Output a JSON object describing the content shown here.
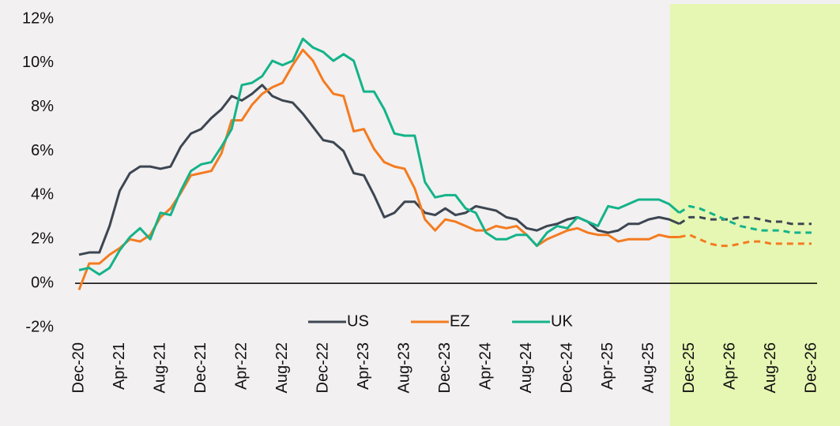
{
  "chart_data": {
    "type": "line",
    "categories": [
      "Dec-20",
      null,
      null,
      null,
      "Apr-21",
      null,
      null,
      null,
      "Aug-21",
      null,
      null,
      null,
      "Dec-21",
      null,
      null,
      null,
      "Apr-22",
      null,
      null,
      null,
      "Aug-22",
      null,
      null,
      null,
      "Dec-22",
      null,
      null,
      null,
      "Apr-23",
      null,
      null,
      null,
      "Aug-23",
      null,
      null,
      null,
      "Dec-23",
      null,
      null,
      null,
      "Apr-24",
      null,
      null,
      null,
      "Aug-24",
      null,
      null,
      null,
      "Dec-24",
      null,
      null,
      null,
      "Apr-25",
      null,
      null,
      null,
      "Aug-25",
      null,
      null,
      null,
      "Dec-25",
      null,
      null,
      null,
      "Apr-26",
      null,
      null,
      null,
      "Aug-26",
      null,
      null,
      null,
      "Dec-26"
    ],
    "series": [
      {
        "name": "US",
        "color": "#3d4652",
        "values": [
          1.3,
          1.4,
          1.4,
          2.6,
          4.2,
          5.0,
          5.3,
          5.3,
          5.2,
          5.3,
          6.2,
          6.8,
          7.0,
          7.5,
          7.9,
          8.5,
          8.3,
          8.6,
          9.0,
          8.5,
          8.3,
          8.2,
          7.7,
          7.1,
          6.5,
          6.4,
          6.0,
          5.0,
          4.9,
          4.0,
          3.0,
          3.2,
          3.7,
          3.7,
          3.2,
          3.1,
          3.4,
          3.1,
          3.2,
          3.5,
          3.4,
          3.3,
          3.0,
          2.9,
          2.5,
          2.4,
          2.6,
          2.7,
          2.9,
          3.0,
          2.8,
          2.4,
          2.3,
          2.4,
          2.7,
          2.7,
          2.9,
          3.0,
          2.9,
          2.7,
          null,
          null,
          null,
          null,
          null,
          null,
          null,
          null,
          null,
          null,
          null,
          null,
          null
        ],
        "forecast_values": [
          null,
          null,
          null,
          null,
          null,
          null,
          null,
          null,
          null,
          null,
          null,
          null,
          null,
          null,
          null,
          null,
          null,
          null,
          null,
          null,
          null,
          null,
          null,
          null,
          null,
          null,
          null,
          null,
          null,
          null,
          null,
          null,
          null,
          null,
          null,
          null,
          null,
          null,
          null,
          null,
          null,
          null,
          null,
          null,
          null,
          null,
          null,
          null,
          null,
          null,
          null,
          null,
          null,
          null,
          null,
          null,
          null,
          null,
          null,
          2.7,
          3.0,
          3.0,
          2.9,
          2.9,
          2.9,
          3.0,
          3.0,
          2.9,
          2.8,
          2.8,
          2.7,
          2.7,
          2.7
        ]
      },
      {
        "name": "EZ",
        "color": "#f47b20",
        "values": [
          -0.3,
          0.9,
          0.9,
          1.3,
          1.6,
          2.0,
          1.9,
          2.2,
          3.0,
          3.4,
          4.1,
          4.9,
          5.0,
          5.1,
          5.9,
          7.4,
          7.4,
          8.1,
          8.6,
          8.9,
          9.1,
          9.9,
          10.6,
          10.1,
          9.2,
          8.6,
          8.5,
          6.9,
          7.0,
          6.1,
          5.5,
          5.3,
          5.2,
          4.3,
          2.9,
          2.4,
          2.9,
          2.8,
          2.6,
          2.4,
          2.4,
          2.6,
          2.5,
          2.6,
          2.2,
          1.7,
          2.0,
          2.2,
          2.4,
          2.5,
          2.3,
          2.2,
          2.2,
          1.9,
          2.0,
          2.0,
          2.0,
          2.2,
          2.1,
          2.1,
          null,
          null,
          null,
          null,
          null,
          null,
          null,
          null,
          null,
          null,
          null,
          null,
          null
        ],
        "forecast_values": [
          null,
          null,
          null,
          null,
          null,
          null,
          null,
          null,
          null,
          null,
          null,
          null,
          null,
          null,
          null,
          null,
          null,
          null,
          null,
          null,
          null,
          null,
          null,
          null,
          null,
          null,
          null,
          null,
          null,
          null,
          null,
          null,
          null,
          null,
          null,
          null,
          null,
          null,
          null,
          null,
          null,
          null,
          null,
          null,
          null,
          null,
          null,
          null,
          null,
          null,
          null,
          null,
          null,
          null,
          null,
          null,
          null,
          null,
          null,
          2.1,
          2.2,
          2.0,
          1.8,
          1.7,
          1.7,
          1.8,
          1.9,
          1.9,
          1.8,
          1.8,
          1.8,
          1.8,
          1.8
        ]
      },
      {
        "name": "UK",
        "color": "#14b38a",
        "values": [
          0.6,
          0.7,
          0.4,
          0.7,
          1.5,
          2.1,
          2.5,
          2.0,
          3.2,
          3.1,
          4.2,
          5.1,
          5.4,
          5.5,
          6.2,
          7.0,
          9.0,
          9.1,
          9.4,
          10.1,
          9.9,
          10.1,
          11.1,
          10.7,
          10.5,
          10.1,
          10.4,
          10.1,
          8.7,
          8.7,
          7.9,
          6.8,
          6.7,
          6.7,
          4.6,
          3.9,
          4.0,
          4.0,
          3.4,
          3.2,
          2.3,
          2.0,
          2.0,
          2.2,
          2.2,
          1.7,
          2.3,
          2.6,
          2.5,
          3.0,
          2.8,
          2.6,
          3.5,
          3.4,
          3.6,
          3.8,
          3.8,
          3.8,
          3.6,
          3.2,
          null,
          null,
          null,
          null,
          null,
          null,
          null,
          null,
          null,
          null,
          null,
          null,
          null
        ],
        "forecast_values": [
          null,
          null,
          null,
          null,
          null,
          null,
          null,
          null,
          null,
          null,
          null,
          null,
          null,
          null,
          null,
          null,
          null,
          null,
          null,
          null,
          null,
          null,
          null,
          null,
          null,
          null,
          null,
          null,
          null,
          null,
          null,
          null,
          null,
          null,
          null,
          null,
          null,
          null,
          null,
          null,
          null,
          null,
          null,
          null,
          null,
          null,
          null,
          null,
          null,
          null,
          null,
          null,
          null,
          null,
          null,
          null,
          null,
          null,
          null,
          3.2,
          3.5,
          3.4,
          3.2,
          3.0,
          2.8,
          2.6,
          2.5,
          2.4,
          2.4,
          2.4,
          2.3,
          2.3,
          2.3
        ]
      }
    ],
    "ylim": [
      -2,
      12
    ],
    "yticks": [
      {
        "value": -2,
        "label": "-2%"
      },
      {
        "value": 0,
        "label": "0%"
      },
      {
        "value": 2,
        "label": "2%"
      },
      {
        "value": 4,
        "label": "4%"
      },
      {
        "value": 6,
        "label": "6%"
      },
      {
        "value": 8,
        "label": "8%"
      },
      {
        "value": 10,
        "label": "10%"
      },
      {
        "value": 12,
        "label": "12%"
      }
    ],
    "grid": false,
    "legend": "bottom",
    "forecast_shading": "#e6f7b3"
  }
}
